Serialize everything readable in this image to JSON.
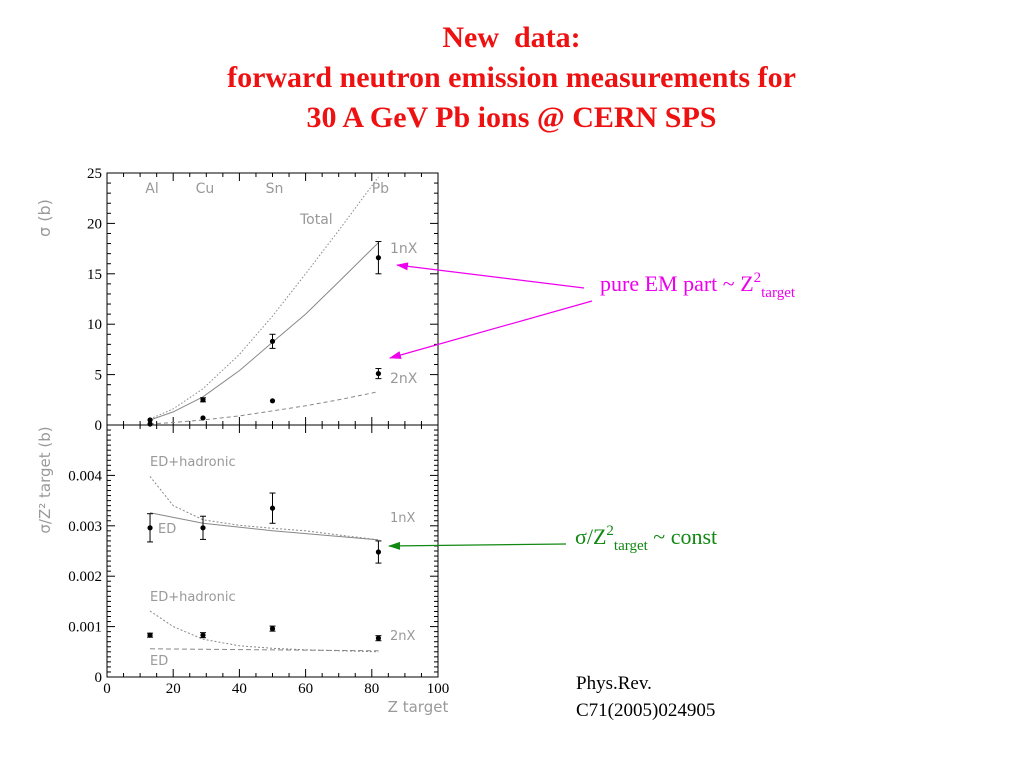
{
  "title": {
    "line1": "New  data:",
    "line2": "forward neutron emission measurements for",
    "line3": "30 A GeV Pb ions @ CERN SPS"
  },
  "annotations": {
    "pure_em": {
      "text": "pure EM part ~ Z",
      "sup": "2",
      "sub": "target"
    },
    "const": {
      "text": "σ/Z",
      "sup": "2",
      "sub": "target",
      "tail": " ~ const"
    }
  },
  "reference": {
    "line1": "Phys.Rev.",
    "line2": "C71(2005)024905"
  },
  "colors": {
    "title": "#ee1111",
    "pure_em": "#ee00ee",
    "const": "#118811",
    "curves": "#888888"
  },
  "chart_data": [
    {
      "type": "scatter",
      "ylabel": "σ (b)",
      "ylim": [
        0,
        25
      ],
      "xlim": [
        0,
        100
      ],
      "yticks": [
        "0",
        "5",
        "10",
        "15",
        "20",
        "25"
      ],
      "element_labels": [
        {
          "text": "Al",
          "x": 13
        },
        {
          "text": "Cu",
          "x": 29
        },
        {
          "text": "Sn",
          "x": 50
        },
        {
          "text": "Pb",
          "x": 82
        }
      ],
      "curve_labels": {
        "total": "Total",
        "onenx": "1nX",
        "twonx": "2nX"
      },
      "series": [
        {
          "name": "1nX",
          "x": [
            13,
            29,
            50,
            82
          ],
          "y": [
            0.5,
            2.5,
            8.3,
            16.6
          ],
          "err": [
            0,
            0.2,
            0.7,
            1.6
          ]
        },
        {
          "name": "2nX",
          "x": [
            13,
            29,
            50,
            82
          ],
          "y": [
            0.1,
            0.7,
            2.4,
            5.1
          ],
          "err": [
            0,
            0,
            0,
            0.5
          ]
        }
      ],
      "curves": {
        "total": {
          "x": [
            13,
            20,
            29,
            40,
            50,
            60,
            70,
            82
          ],
          "y": [
            0.6,
            1.6,
            3.6,
            7.0,
            10.8,
            15.0,
            19.3,
            24.6
          ]
        },
        "onenx": {
          "x": [
            13,
            20,
            29,
            40,
            50,
            60,
            70,
            82
          ],
          "y": [
            0.5,
            1.3,
            2.8,
            5.4,
            8.2,
            11.0,
            14.2,
            18.1
          ]
        },
        "twonx": {
          "x": [
            13,
            20,
            29,
            40,
            50,
            60,
            70,
            82
          ],
          "y": [
            0.1,
            0.25,
            0.5,
            0.9,
            1.4,
            1.9,
            2.5,
            3.3
          ]
        }
      }
    },
    {
      "type": "scatter",
      "ylabel": "σ/Z² target (b)",
      "xlabel": "Z target",
      "ylim": [
        0,
        0.005
      ],
      "xlim": [
        0,
        100
      ],
      "yticks": [
        "0",
        "0.001",
        "0.002",
        "0.003",
        "0.004"
      ],
      "xticks": [
        "0",
        "20",
        "40",
        "60",
        "80",
        "100"
      ],
      "curve_labels": {
        "ed_hadronic_top": "ED+hadronic",
        "ed_top": "ED",
        "onenx": "1nX",
        "ed_hadronic_bottom": "ED+hadronic",
        "ed_bottom": "ED",
        "twonx": "2nX"
      },
      "series": [
        {
          "name": "1nX",
          "x": [
            13,
            29,
            50,
            82
          ],
          "y": [
            0.00296,
            0.00296,
            0.00335,
            0.00248
          ],
          "err": [
            0.00028,
            0.00023,
            0.0003,
            0.00022
          ]
        },
        {
          "name": "2nX",
          "x": [
            13,
            29,
            50,
            82
          ],
          "y": [
            0.00083,
            0.00083,
            0.00096,
            0.00077
          ],
          "err": [
            4e-05,
            5e-05,
            5e-05,
            5e-05
          ]
        }
      ],
      "curves": {
        "onenx_ed": {
          "x": [
            13,
            29,
            50,
            82
          ],
          "y": [
            0.00326,
            0.00305,
            0.0029,
            0.00272
          ]
        },
        "onenx_edhad": {
          "x": [
            13,
            20,
            29,
            40,
            50,
            60,
            82
          ],
          "y": [
            0.00398,
            0.0034,
            0.00312,
            0.00301,
            0.00295,
            0.0029,
            0.00272
          ]
        },
        "twonx_ed": {
          "x": [
            13,
            82
          ],
          "y": [
            0.00056,
            0.00052
          ]
        },
        "twonx_edhad": {
          "x": [
            13,
            20,
            29,
            40,
            50,
            60,
            82
          ],
          "y": [
            0.00131,
            0.001,
            0.00075,
            0.00062,
            0.00057,
            0.00054,
            0.0005
          ]
        }
      }
    }
  ]
}
